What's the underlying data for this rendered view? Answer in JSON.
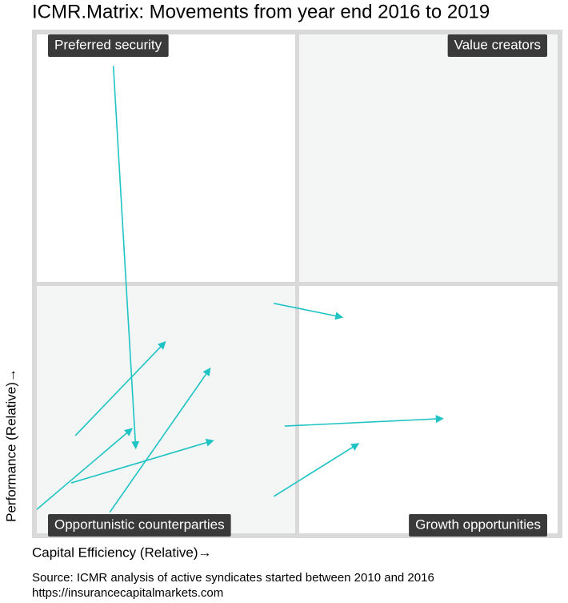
{
  "chart_data": {
    "type": "arrow",
    "title": "ICMR.Matrix: Movements from year end 2016 to 2019",
    "x_label": "Capital Efficiency (Relative)→",
    "y_label": "Performance (Relative)→",
    "quadrants": [
      "Preferred security",
      "Value creators",
      "Opportunistic counterparties",
      "Growth opportunities"
    ],
    "source": [
      "Source: ICMR analysis of active syndicates started between 2010 and 2016",
      "https://insurancecapitalmarkets.com"
    ],
    "xlim": [
      0,
      100
    ],
    "ylim": [
      0,
      100
    ],
    "color": "#1fc3c3",
    "arrows": [
      {
        "x": [
          14.7,
          19.0
        ],
        "y": [
          93.7,
          17.0
        ]
      },
      {
        "x": [
          7.4,
          24.7
        ],
        "y": [
          19.6,
          38.4
        ]
      },
      {
        "x": [
          0.0,
          18.3
        ],
        "y": [
          4.8,
          21.0
        ]
      },
      {
        "x": [
          14.0,
          33.3
        ],
        "y": [
          4.2,
          33.1
        ]
      },
      {
        "x": [
          6.6,
          33.9
        ],
        "y": [
          10.1,
          18.6
        ]
      },
      {
        "x": [
          45.5,
          58.7
        ],
        "y": [
          46.1,
          43.3
        ]
      },
      {
        "x": [
          47.6,
          78.0
        ],
        "y": [
          21.5,
          23.0
        ]
      },
      {
        "x": [
          45.5,
          61.8
        ],
        "y": [
          7.4,
          18.0
        ]
      }
    ]
  }
}
